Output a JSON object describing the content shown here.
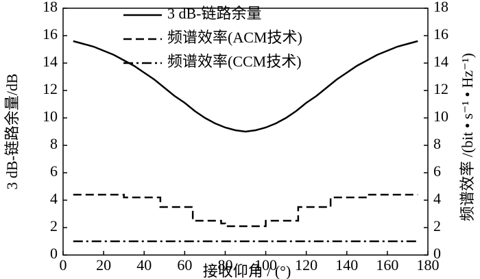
{
  "chart_data": {
    "type": "line",
    "xlabel": "接收仰角 / (°)",
    "ylabel": "3 dB-链路余量/dB",
    "y2label": "频谱效率 /(bit • s⁻¹ • Hz⁻¹)",
    "xlim": [
      0,
      180
    ],
    "xticks": [
      0,
      20,
      40,
      60,
      80,
      100,
      120,
      140,
      160,
      180
    ],
    "ylim": [
      0,
      18
    ],
    "yticks": [
      0,
      2,
      4,
      6,
      8,
      10,
      12,
      14,
      16,
      18
    ],
    "y2lim": [
      0,
      18
    ],
    "y2ticks": [
      0,
      2,
      4,
      6,
      8,
      10,
      12,
      14,
      16,
      18
    ],
    "series": [
      {
        "name": "3 dB-链路余量",
        "color": "#000000",
        "style": "solid",
        "x": [
          5,
          10,
          15,
          20,
          25,
          30,
          35,
          40,
          45,
          50,
          55,
          60,
          65,
          70,
          75,
          80,
          85,
          90,
          95,
          100,
          105,
          110,
          115,
          120,
          125,
          130,
          135,
          140,
          145,
          150,
          155,
          160,
          165,
          170,
          175
        ],
        "values": [
          15.6,
          15.4,
          15.2,
          14.9,
          14.6,
          14.2,
          13.8,
          13.3,
          12.8,
          12.2,
          11.6,
          11.1,
          10.5,
          10.0,
          9.6,
          9.3,
          9.1,
          9.0,
          9.1,
          9.3,
          9.6,
          10.0,
          10.5,
          11.1,
          11.6,
          12.2,
          12.8,
          13.3,
          13.8,
          14.2,
          14.6,
          14.9,
          15.2,
          15.4,
          15.6
        ]
      },
      {
        "name": "频谱效率(ACM技术)",
        "color": "#000000",
        "style": "dashed",
        "axis": "y2",
        "x": [
          5,
          30,
          30,
          48,
          48,
          64,
          64,
          78,
          78,
          80,
          80,
          100,
          100,
          116,
          116,
          132,
          132,
          150,
          150,
          175
        ],
        "values": [
          4.4,
          4.4,
          4.2,
          4.2,
          3.5,
          3.5,
          2.5,
          2.5,
          2.3,
          2.3,
          2.1,
          2.1,
          2.5,
          2.5,
          3.5,
          3.5,
          4.2,
          4.2,
          4.4,
          4.4
        ]
      },
      {
        "name": "频谱效率(CCM技术)",
        "color": "#000000",
        "style": "dashdot",
        "axis": "y2",
        "x": [
          5,
          175
        ],
        "values": [
          1.0,
          1.0
        ]
      }
    ]
  }
}
